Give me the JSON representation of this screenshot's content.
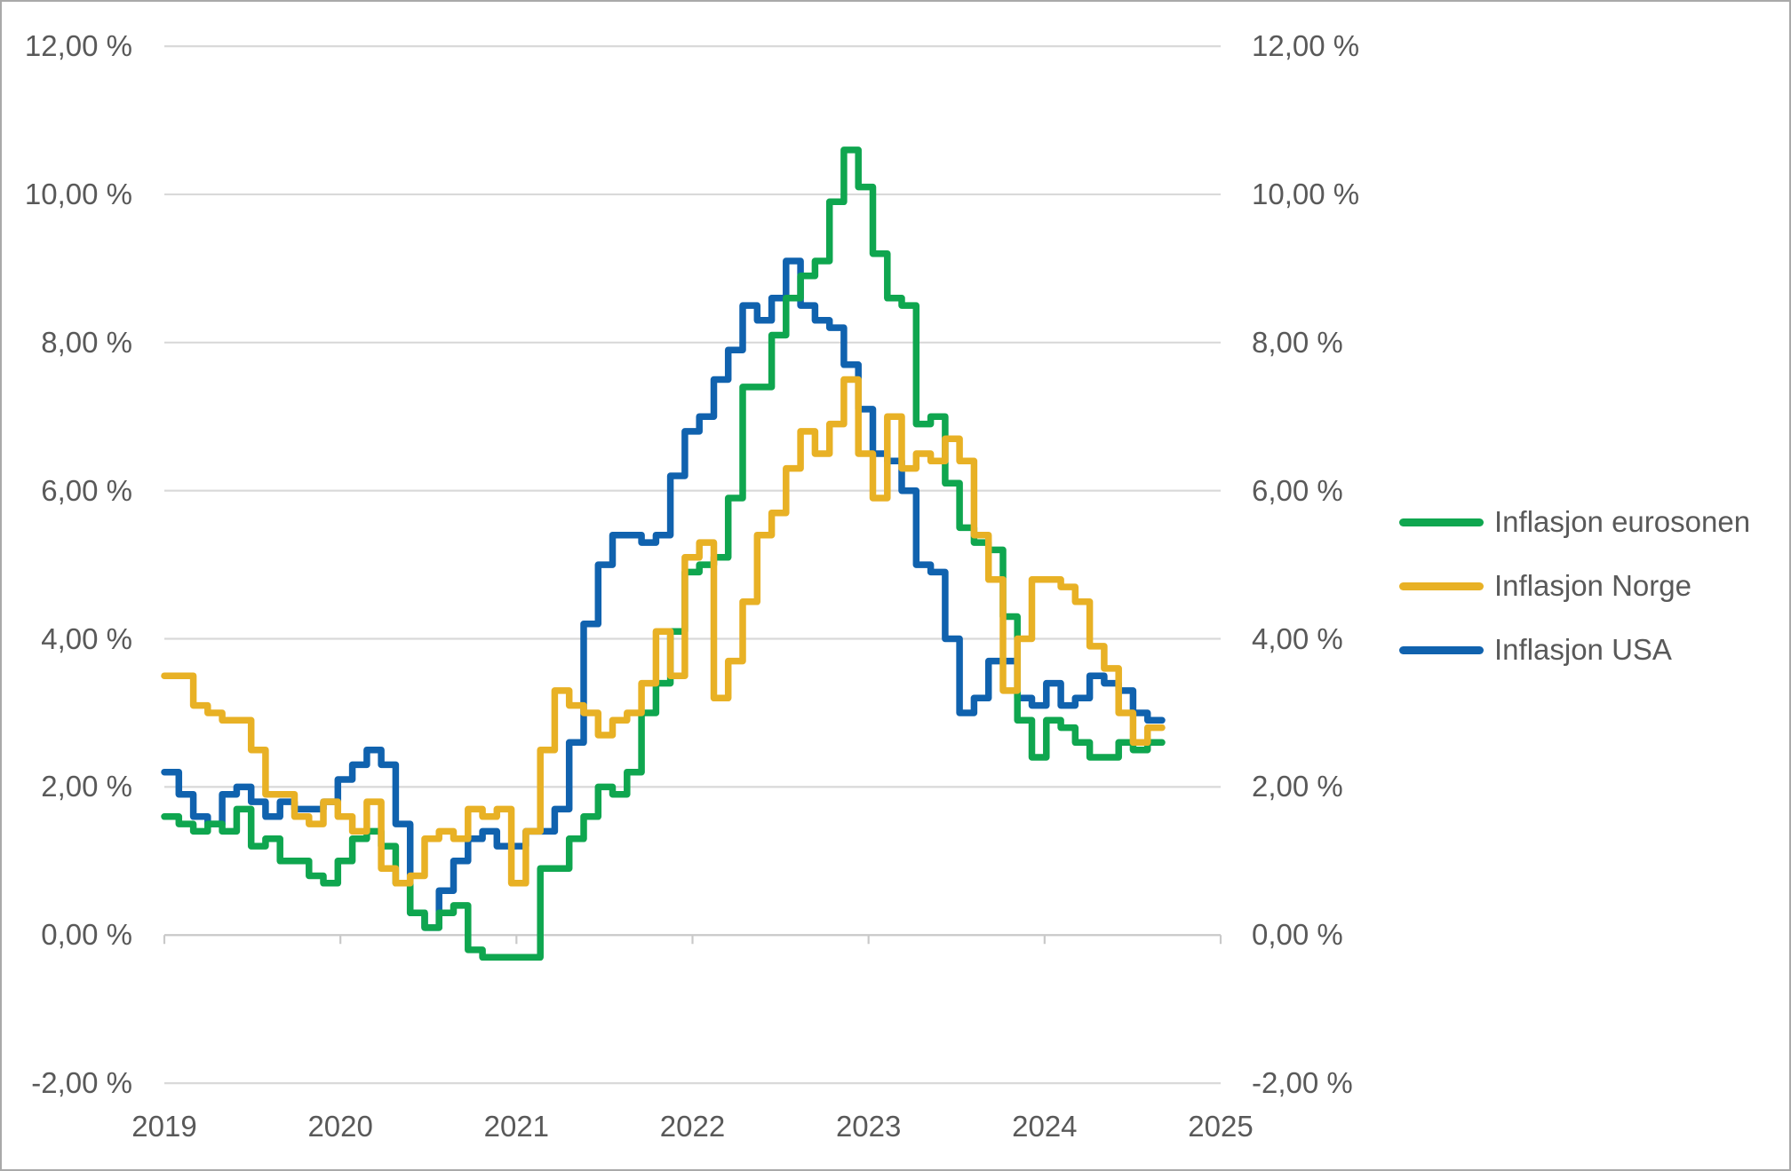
{
  "chart_data": {
    "type": "line",
    "subtype": "step-monthly",
    "title": "",
    "xlabel": "",
    "ylabel": "",
    "x_unit": "month",
    "x_start": "2018-11",
    "x_end": "2024-07",
    "points_per_series": 69,
    "ylim": [
      -2,
      12
    ],
    "grid": "horizontal",
    "legend_position": "right",
    "y_tick_labels": [
      "12,00 %",
      "10,00 %",
      "8,00 %",
      "6,00 %",
      "4,00 %",
      "2,00 %",
      "0,00 %",
      "-2,00 %"
    ],
    "y_tick_values": [
      12,
      10,
      8,
      6,
      4,
      2,
      0,
      -2
    ],
    "x_tick_labels": [
      "2019",
      "2020",
      "2021",
      "2022",
      "2023",
      "2024",
      "2025"
    ],
    "draw_order": [
      2,
      0,
      1
    ],
    "series": [
      {
        "name": "Inflasjon eurosonen",
        "color": "#0fa64f",
        "values": [
          1.6,
          1.5,
          1.4,
          1.5,
          1.4,
          1.7,
          1.2,
          1.3,
          1.0,
          1.0,
          0.8,
          0.7,
          1.0,
          1.3,
          1.4,
          1.2,
          0.7,
          0.3,
          0.1,
          0.3,
          0.4,
          -0.2,
          -0.3,
          -0.3,
          -0.3,
          -0.3,
          0.9,
          0.9,
          1.3,
          1.6,
          2.0,
          1.9,
          2.2,
          3.0,
          3.4,
          4.1,
          4.9,
          5.0,
          5.1,
          5.9,
          7.4,
          7.4,
          8.1,
          8.6,
          8.9,
          9.1,
          9.9,
          10.6,
          10.1,
          9.2,
          8.6,
          8.5,
          6.9,
          7.0,
          6.1,
          5.5,
          5.3,
          5.2,
          4.3,
          2.9,
          2.4,
          2.9,
          2.8,
          2.6,
          2.4,
          2.4,
          2.6,
          2.5,
          2.6
        ]
      },
      {
        "name": "Inflasjon Norge",
        "color": "#e8b125",
        "values": [
          3.5,
          3.5,
          3.1,
          3.0,
          2.9,
          2.9,
          2.5,
          1.9,
          1.9,
          1.6,
          1.5,
          1.8,
          1.6,
          1.4,
          1.8,
          0.9,
          0.7,
          0.8,
          1.3,
          1.4,
          1.3,
          1.7,
          1.6,
          1.7,
          0.7,
          1.4,
          2.5,
          3.3,
          3.1,
          3.0,
          2.7,
          2.9,
          3.0,
          3.4,
          4.1,
          3.5,
          5.1,
          5.3,
          3.2,
          3.7,
          4.5,
          5.4,
          5.7,
          6.3,
          6.8,
          6.5,
          6.9,
          7.5,
          6.5,
          5.9,
          7.0,
          6.3,
          6.5,
          6.4,
          6.7,
          6.4,
          5.4,
          4.8,
          3.3,
          4.0,
          4.8,
          4.8,
          4.7,
          4.5,
          3.9,
          3.6,
          3.0,
          2.6,
          2.8
        ]
      },
      {
        "name": "Inflasjon USA",
        "color": "#1062ae",
        "values": [
          2.2,
          1.9,
          1.6,
          1.5,
          1.9,
          2.0,
          1.8,
          1.6,
          1.8,
          1.7,
          1.7,
          1.8,
          2.1,
          2.3,
          2.5,
          2.3,
          1.5,
          0.3,
          0.1,
          0.6,
          1.0,
          1.3,
          1.4,
          1.2,
          1.2,
          1.4,
          1.4,
          1.7,
          2.6,
          4.2,
          5.0,
          5.4,
          5.4,
          5.3,
          5.4,
          6.2,
          6.8,
          7.0,
          7.5,
          7.9,
          8.5,
          8.3,
          8.6,
          9.1,
          8.5,
          8.3,
          8.2,
          7.7,
          7.1,
          6.5,
          6.4,
          6.0,
          5.0,
          4.9,
          4.0,
          3.0,
          3.2,
          3.7,
          3.7,
          3.2,
          3.1,
          3.4,
          3.1,
          3.2,
          3.5,
          3.4,
          3.3,
          3.0,
          2.9
        ]
      }
    ]
  },
  "legend": {
    "items": [
      {
        "label": "Inflasjon eurosonen",
        "color": "#0fa64f"
      },
      {
        "label": "Inflasjon Norge",
        "color": "#e8b125"
      },
      {
        "label": "Inflasjon USA",
        "color": "#1062ae"
      }
    ]
  },
  "colors": {
    "background": "#ffffff",
    "frame_border": "#a9a9a9",
    "gridline": "#d9d9d9",
    "axis_line": "#c9c9c9",
    "text": "#595959"
  }
}
